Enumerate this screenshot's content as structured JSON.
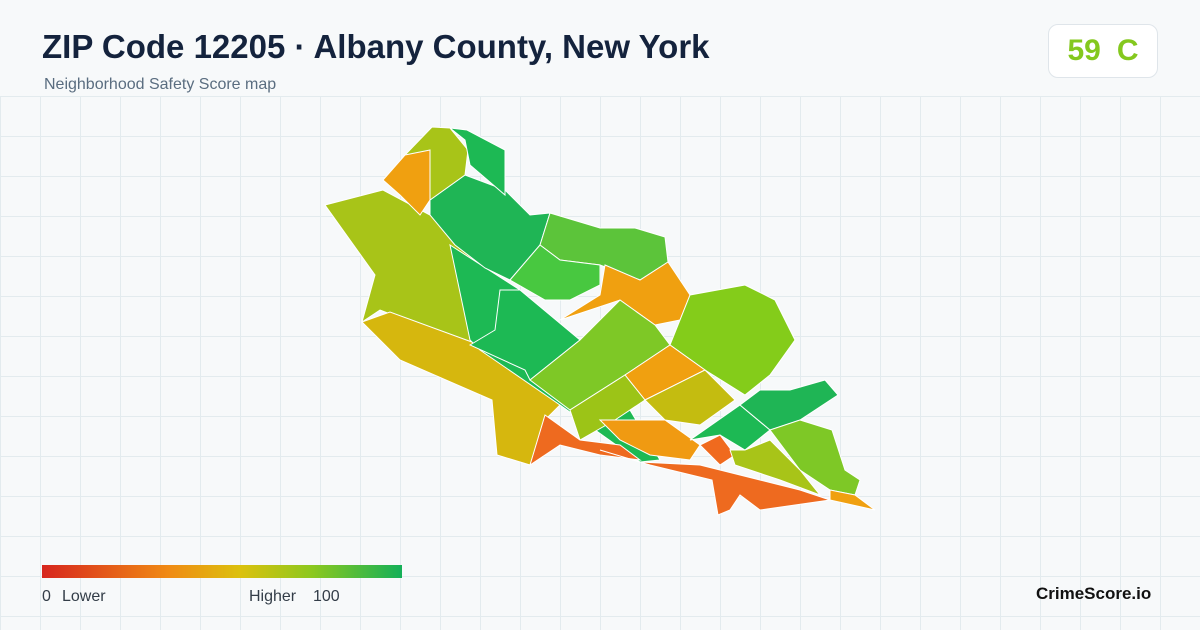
{
  "header": {
    "title": "ZIP Code 12205 · Albany County, New York",
    "subtitle": "Neighborhood Safety Score map"
  },
  "score": {
    "value": 59,
    "grade": "C"
  },
  "legend": {
    "min": 0,
    "min_label": "Lower",
    "max_label": "Higher",
    "max": 100
  },
  "brand": "CrimeScore.io"
}
